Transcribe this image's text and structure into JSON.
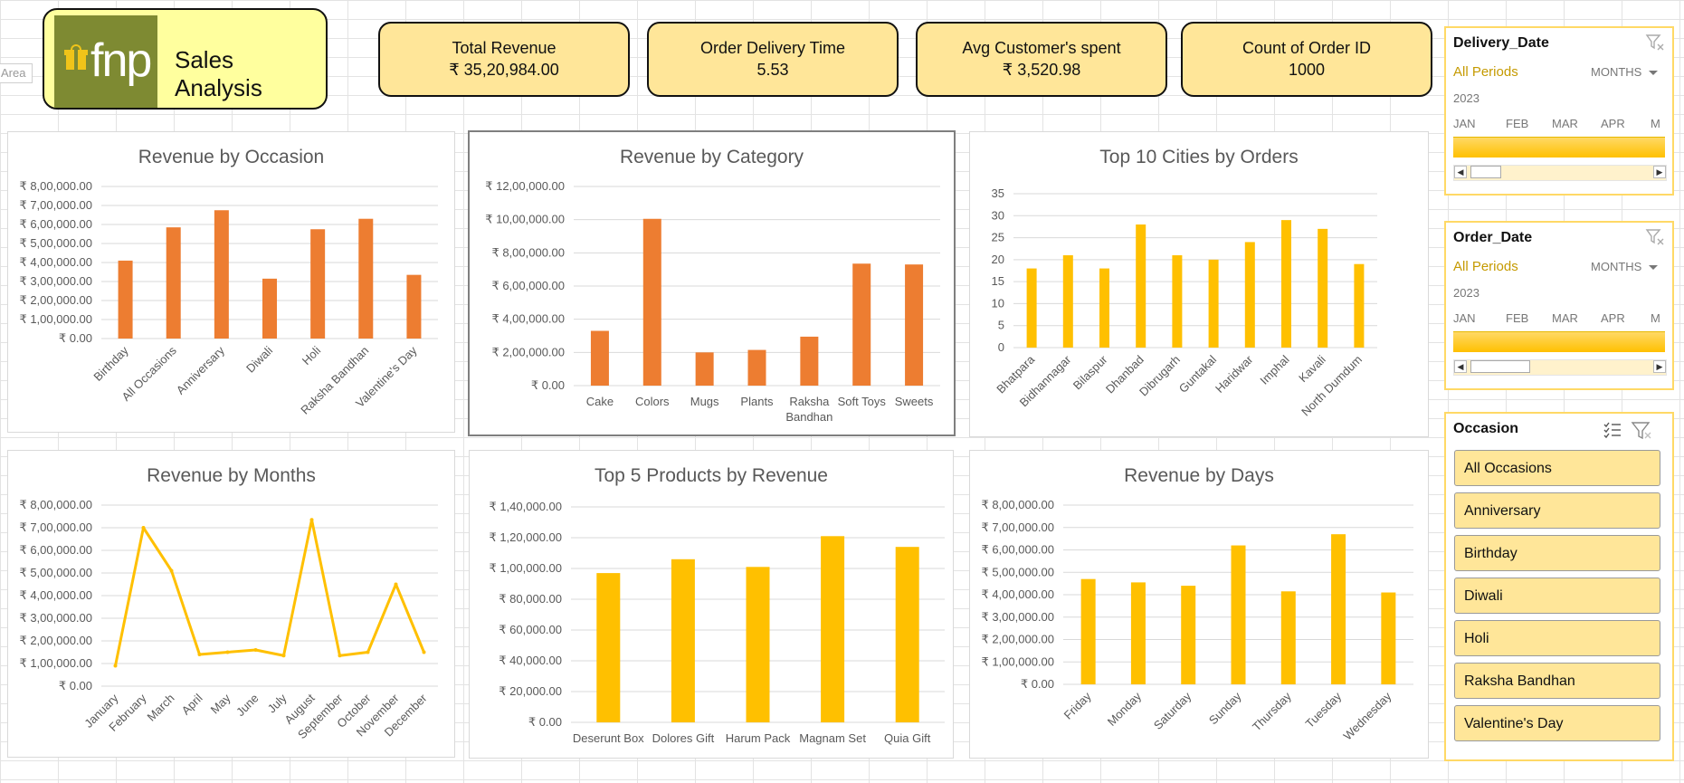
{
  "sheet": {
    "area_label": "Area"
  },
  "header": {
    "brand": "fnp",
    "title": "Sales Analysis"
  },
  "kpis": [
    {
      "label": "Total Revenue",
      "value": "₹ 35,20,984.00"
    },
    {
      "label": "Order Delivery Time",
      "value": "5.53"
    },
    {
      "label": "Avg Customer's spent",
      "value": "₹ 3,520.98"
    },
    {
      "label": "Count of Order ID",
      "value": "1000"
    }
  ],
  "colors": {
    "orange": "#ed7d31",
    "yellow": "#ffc000",
    "kpi_bg": "#ffe699",
    "title_bg": "#ffff9e",
    "logo_bg": "#7e8a32"
  },
  "chart_data": [
    {
      "id": "occasion",
      "type": "bar",
      "title": "Revenue by Occasion",
      "color": "#ed7d31",
      "categories": [
        "Birthday",
        "All Occasions",
        "Anniversary",
        "Diwali",
        "Holi",
        "Raksha Bandhan",
        "Valentine's Day"
      ],
      "values": [
        410000,
        585000,
        675000,
        315000,
        575000,
        630000,
        335000
      ],
      "ylim": [
        0,
        800000
      ],
      "yticks": [
        "₹ 0.00",
        "₹ 1,00,000.00",
        "₹ 2,00,000.00",
        "₹ 3,00,000.00",
        "₹ 4,00,000.00",
        "₹ 5,00,000.00",
        "₹ 6,00,000.00",
        "₹ 7,00,000.00",
        "₹ 8,00,000.00"
      ],
      "grid": true
    },
    {
      "id": "category",
      "type": "bar",
      "title": "Revenue by Category",
      "color": "#ed7d31",
      "categories": [
        "Cake",
        "Colors",
        "Mugs",
        "Plants",
        "Raksha Bandhan",
        "Soft Toys",
        "Sweets"
      ],
      "category_lines": [
        [
          "Cake"
        ],
        [
          "Colors"
        ],
        [
          "Mugs"
        ],
        [
          "Plants"
        ],
        [
          "Raksha",
          "Bandhan"
        ],
        [
          "Soft Toys"
        ],
        [
          "Sweets"
        ]
      ],
      "values": [
        330000,
        1005000,
        200000,
        215000,
        295000,
        735000,
        730000
      ],
      "ylim": [
        0,
        1200000
      ],
      "yticks": [
        "₹ 0.00",
        "₹ 2,00,000.00",
        "₹ 4,00,000.00",
        "₹ 6,00,000.00",
        "₹ 8,00,000.00",
        "₹ 10,00,000.00",
        "₹ 12,00,000.00"
      ],
      "grid": true
    },
    {
      "id": "cities",
      "type": "bar",
      "title": "Top 10 Cities by Orders",
      "color": "#ffc000",
      "categories": [
        "Bhatpara",
        "Bidhannagar",
        "Bilaspur",
        "Dhanbad",
        "Dibrugarh",
        "Guntakal",
        "Haridwar",
        "Imphal",
        "Kavali",
        "North Dumdum"
      ],
      "values": [
        18,
        21,
        18,
        28,
        21,
        20,
        24,
        29,
        27,
        19
      ],
      "ylim": [
        0,
        35
      ],
      "yticks": [
        "0",
        "5",
        "10",
        "15",
        "20",
        "25",
        "30",
        "35"
      ],
      "grid": true
    },
    {
      "id": "months",
      "type": "line",
      "title": "Revenue by Months",
      "color": "#ffc000",
      "categories": [
        "January",
        "February",
        "March",
        "April",
        "May",
        "June",
        "July",
        "August",
        "September",
        "October",
        "November",
        "December"
      ],
      "values": [
        90000,
        700000,
        510000,
        140000,
        150000,
        160000,
        135000,
        735000,
        135000,
        150000,
        450000,
        150000
      ],
      "ylim": [
        0,
        800000
      ],
      "yticks": [
        "₹ 0.00",
        "₹ 1,00,000.00",
        "₹ 2,00,000.00",
        "₹ 3,00,000.00",
        "₹ 4,00,000.00",
        "₹ 5,00,000.00",
        "₹ 6,00,000.00",
        "₹ 7,00,000.00",
        "₹ 8,00,000.00"
      ],
      "grid": true
    },
    {
      "id": "products",
      "type": "bar",
      "title": "Top 5 Products by Revenue",
      "color": "#ffc000",
      "categories": [
        "Deserunt Box",
        "Dolores Gift",
        "Harum Pack",
        "Magnam Set",
        "Quia Gift"
      ],
      "values": [
        97000,
        106000,
        101000,
        121000,
        114000
      ],
      "ylim": [
        0,
        140000
      ],
      "yticks": [
        "₹ 0.00",
        "₹ 20,000.00",
        "₹ 40,000.00",
        "₹ 60,000.00",
        "₹ 80,000.00",
        "₹ 1,00,000.00",
        "₹ 1,20,000.00",
        "₹ 1,40,000.00"
      ],
      "grid": true
    },
    {
      "id": "days",
      "type": "bar",
      "title": "Revenue by Days",
      "color": "#ffc000",
      "categories": [
        "Friday",
        "Monday",
        "Saturday",
        "Sunday",
        "Thursday",
        "Tuesday",
        "Wednesday"
      ],
      "values": [
        470000,
        455000,
        440000,
        620000,
        415000,
        670000,
        410000
      ],
      "ylim": [
        0,
        800000
      ],
      "yticks": [
        "₹ 0.00",
        "₹ 1,00,000.00",
        "₹ 2,00,000.00",
        "₹ 3,00,000.00",
        "₹ 4,00,000.00",
        "₹ 5,00,000.00",
        "₹ 6,00,000.00",
        "₹ 7,00,000.00",
        "₹ 8,00,000.00"
      ],
      "grid": true
    }
  ],
  "timelines": [
    {
      "field": "Delivery_Date",
      "periods": "All Periods",
      "unit": "MONTHS",
      "year": "2023",
      "months": [
        "JAN",
        "FEB",
        "MAR",
        "APR",
        "M"
      ]
    },
    {
      "field": "Order_Date",
      "periods": "All Periods",
      "unit": "MONTHS",
      "year": "2023",
      "months": [
        "JAN",
        "FEB",
        "MAR",
        "APR",
        "M"
      ]
    }
  ],
  "slicer": {
    "field": "Occasion",
    "items": [
      "All Occasions",
      "Anniversary",
      "Birthday",
      "Diwali",
      "Holi",
      "Raksha Bandhan",
      "Valentine's Day"
    ],
    "icons": {
      "multi_select": "multi-select-icon",
      "clear_filter": "clear-filter-icon"
    }
  }
}
